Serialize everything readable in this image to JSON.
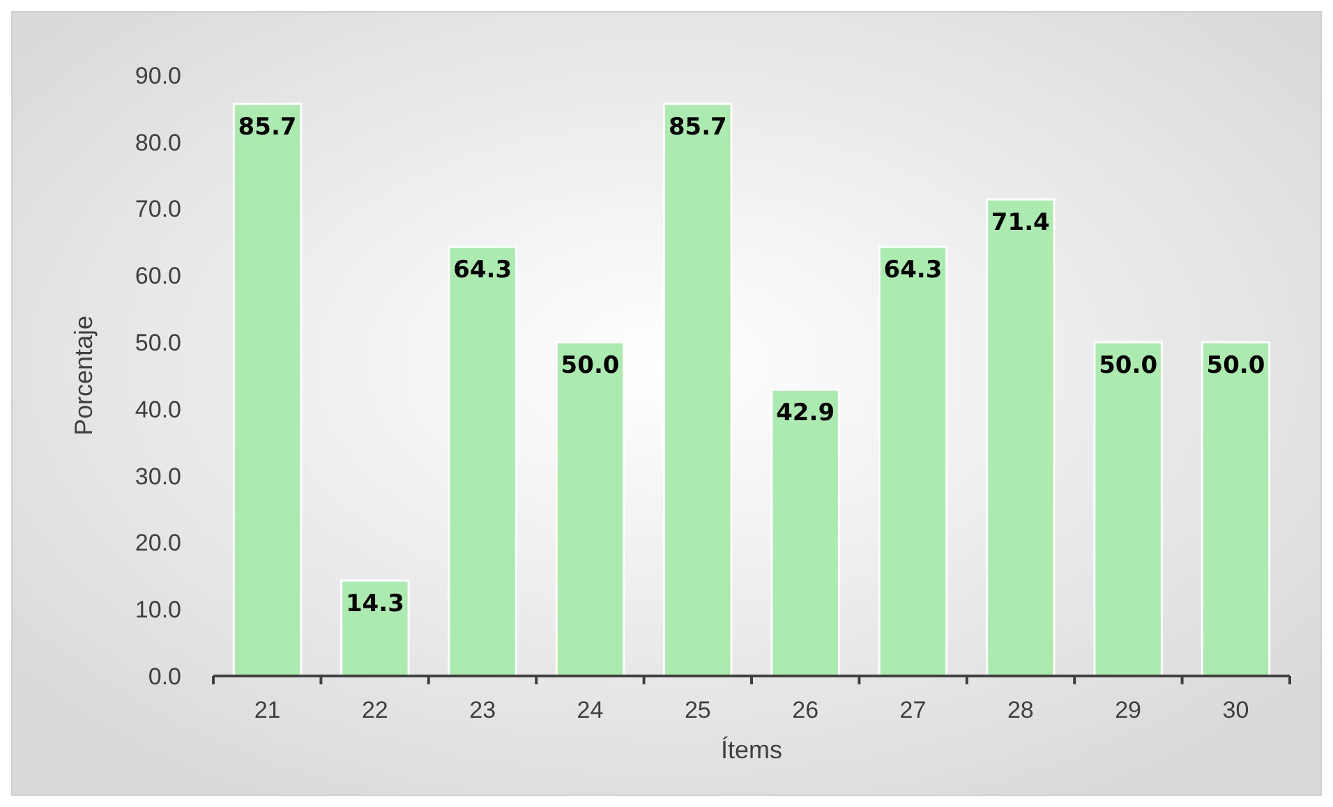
{
  "chart_data": {
    "type": "bar",
    "xlabel": "Ítems",
    "ylabel": "Porcentaje",
    "categories": [
      "21",
      "22",
      "23",
      "24",
      "25",
      "26",
      "27",
      "28",
      "29",
      "30"
    ],
    "values": [
      85.7,
      14.3,
      64.3,
      50.0,
      85.7,
      42.9,
      64.3,
      71.4,
      50.0,
      50.0
    ],
    "value_labels": [
      "85.7",
      "14.3",
      "64.3",
      "50.0",
      "85.7",
      "42.9",
      "64.3",
      "71.4",
      "50.0",
      "50.0"
    ],
    "color": "#abebb0",
    "ylim": [
      0,
      90
    ],
    "yticks": [
      {
        "value": 0,
        "label": "0.0"
      },
      {
        "value": 10,
        "label": "10.0"
      },
      {
        "value": 20,
        "label": "20.0"
      },
      {
        "value": 30,
        "label": "30.0"
      },
      {
        "value": 40,
        "label": "40.0"
      },
      {
        "value": 50,
        "label": "50.0"
      },
      {
        "value": 60,
        "label": "60.0"
      },
      {
        "value": 70,
        "label": "70.0"
      },
      {
        "value": 80,
        "label": "80.0"
      },
      {
        "value": 90,
        "label": "90.0"
      }
    ],
    "grid": false
  }
}
